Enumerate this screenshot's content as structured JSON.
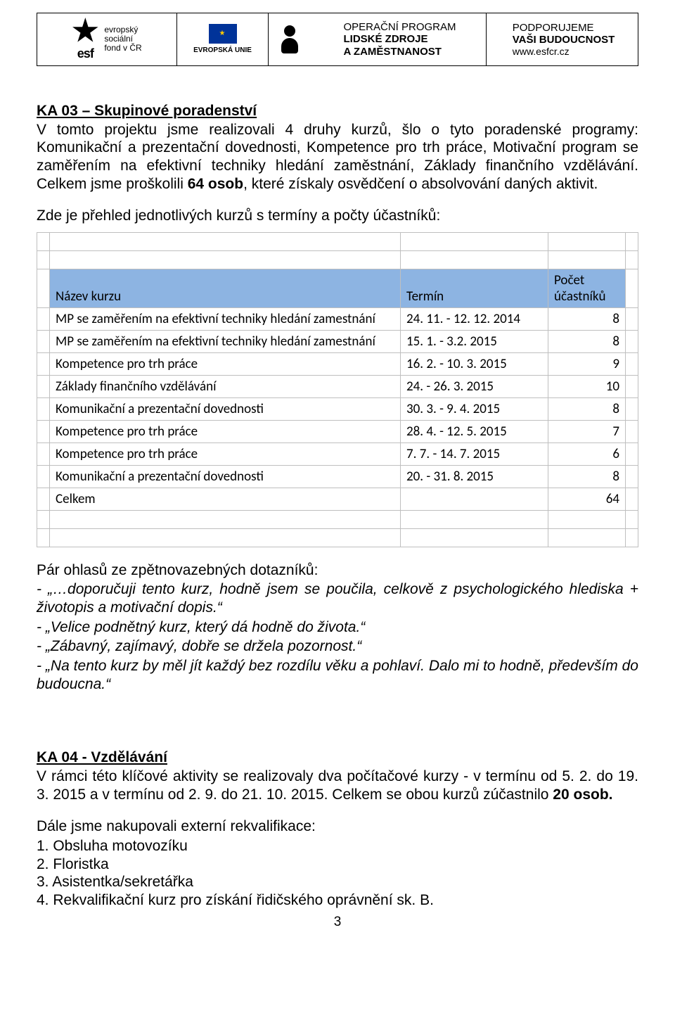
{
  "header": {
    "esf": {
      "line1": "evropský",
      "line2": "sociální",
      "line3": "fond v ČR"
    },
    "eu": {
      "label": "EVROPSKÁ UNIE"
    },
    "op": {
      "line1": "OPERAČNÍ PROGRAM",
      "line2": "LIDSKÉ ZDROJE",
      "line3": "A ZAMĚSTNANOST"
    },
    "support": {
      "line1": "PODPORUJEME",
      "line2": "VAŠI BUDOUCNOST",
      "url": "www.esfcr.cz"
    }
  },
  "ka03": {
    "title": "KA 03 – Skupinové poradenství",
    "para": "V tomto projektu jsme realizovali 4 druhy kurzů, šlo o tyto poradenské programy: Komunikační a prezentační dovednosti, Kompetence pro trh práce, Motivační program se zaměřením na efektivní techniky hledání zaměstnání, Základy finančního vzdělávání. Celkem jsme proškolili ",
    "bold": "64 osob",
    "para_after": ", které získaly osvědčení o absolvování daných aktivit.",
    "lead": "Zde je přehled jednotlivých kurzů s termíny a počty účastníků:"
  },
  "table": {
    "headers": {
      "name": "Název kurzu",
      "term": "Termín",
      "count": "Počet účastníků"
    },
    "rows": [
      {
        "name": "MP se zaměřením na efektivní techniky hledání zamestnání",
        "term": "24. 11. - 12. 12. 2014",
        "count": "8"
      },
      {
        "name": "MP se zaměřením na efektivní techniky hledání zamestnání",
        "term": "15. 1. - 3.2. 2015",
        "count": "8"
      },
      {
        "name": "Kompetence pro trh práce",
        "term": "16. 2. - 10. 3. 2015",
        "count": "9"
      },
      {
        "name": "Základy finančního vzdělávání",
        "term": "24. - 26. 3. 2015",
        "count": "10"
      },
      {
        "name": "Komunikační a prezentační dovednosti",
        "term": "30. 3. - 9. 4. 2015",
        "count": "8"
      },
      {
        "name": "Kompetence pro trh práce",
        "term": "28. 4. - 12. 5. 2015",
        "count": "7"
      },
      {
        "name": "Kompetence pro trh práce",
        "term": "7. 7. - 14. 7. 2015",
        "count": "6"
      },
      {
        "name": "Komunikační a prezentační dovednosti",
        "term": "20. - 31. 8. 2015",
        "count": "8"
      }
    ],
    "total_label": "Celkem",
    "total_value": "64"
  },
  "feedback": {
    "lead": "Pár ohlasů ze zpětnovazebných dotazníků:",
    "q1": "- „…doporučuji tento kurz, hodně jsem se poučila, celkově z psychologického hlediska + životopis a motivační dopis.“",
    "q2": "- „Velice podnětný kurz, který dá hodně do života.“",
    "q3": "- „Zábavný, zajímavý, dobře se držela pozornost.“",
    "q4": "- „Na tento kurz by měl jít každý bez rozdílu věku a pohlaví. Dalo mi to hodně, především do budoucna.“"
  },
  "ka04": {
    "title": "KA 04 - Vzdělávání",
    "para_before": "V rámci této klíčové aktivity se realizovaly dva počítačové kurzy - v termínu od 5. 2. do 19. 3. 2015 a v termínu od 2. 9. do 21. 10. 2015. Celkem se obou kurzů zúčastnilo ",
    "bold": "20 osob.",
    "lead": "Dále jsme nakupovali externí rekvalifikace:",
    "items": [
      "1. Obsluha motovozíku",
      "2. Floristka",
      "3. Asistentka/sekretářka",
      "4. Rekvalifikační kurz pro získání řidičského oprávnění sk. B."
    ]
  },
  "page_number": "3"
}
